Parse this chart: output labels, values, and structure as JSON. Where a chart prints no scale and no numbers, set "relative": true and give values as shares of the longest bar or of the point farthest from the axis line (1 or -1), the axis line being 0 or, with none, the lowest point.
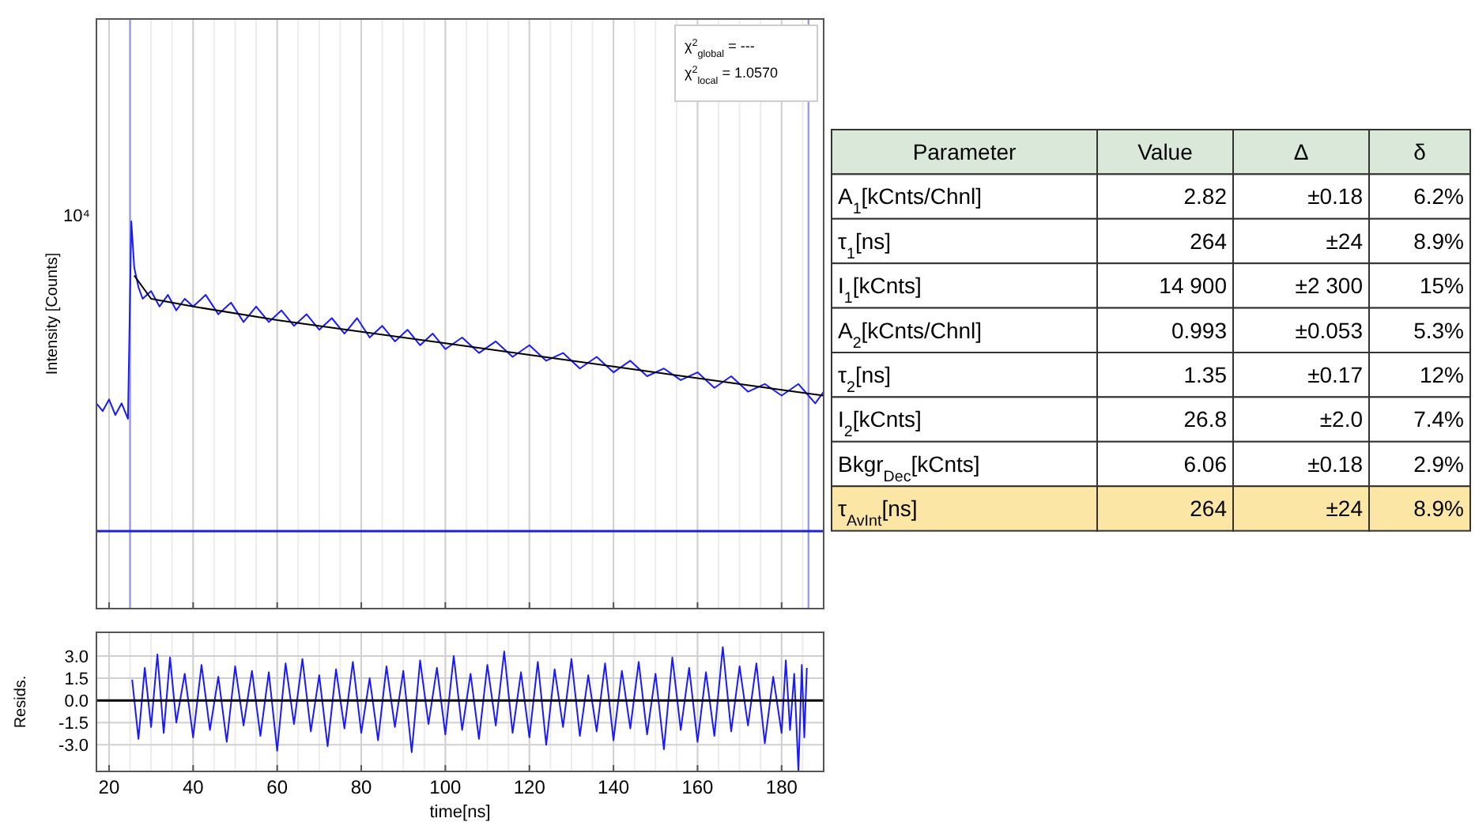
{
  "chart_data": [
    {
      "type": "line",
      "relative": true,
      "ylabel": "Intensity [Counts]",
      "xlim": [
        17,
        190
      ],
      "xticks": [
        20,
        40,
        60,
        80,
        100,
        120,
        140,
        160,
        180
      ],
      "grid": "x",
      "tick_labels": false,
      "series": [
        {
          "color": "#1a1aff",
          "x": [
            17,
            18.5,
            20,
            21.5,
            23,
            24.5,
            25.3,
            26,
            27,
            28,
            30,
            32,
            34,
            36,
            38,
            40,
            43,
            46,
            49,
            52,
            55,
            58,
            61,
            64,
            67,
            70,
            73,
            76,
            79,
            82,
            85,
            88,
            91,
            94,
            97,
            100,
            104,
            108,
            112,
            116,
            120,
            124,
            128,
            132,
            136,
            140,
            144,
            148,
            152,
            156,
            160,
            164,
            168,
            172,
            176,
            180,
            184,
            188,
            190
          ],
          "values": [
            0.53,
            0.51,
            0.54,
            0.5,
            0.53,
            0.49,
            1.0,
            0.88,
            0.83,
            0.8,
            0.82,
            0.78,
            0.81,
            0.77,
            0.8,
            0.78,
            0.81,
            0.76,
            0.79,
            0.74,
            0.78,
            0.74,
            0.77,
            0.73,
            0.76,
            0.72,
            0.75,
            0.71,
            0.75,
            0.7,
            0.73,
            0.69,
            0.72,
            0.68,
            0.71,
            0.67,
            0.7,
            0.66,
            0.69,
            0.65,
            0.68,
            0.64,
            0.66,
            0.62,
            0.65,
            0.61,
            0.64,
            0.6,
            0.62,
            0.59,
            0.61,
            0.57,
            0.6,
            0.56,
            0.58,
            0.55,
            0.58,
            0.53,
            0.56
          ]
        },
        {
          "color": "#000000",
          "x": [
            26,
            30,
            40,
            60,
            80,
            100,
            120,
            140,
            160,
            180,
            190
          ],
          "values": [
            0.86,
            0.8,
            0.78,
            0.745,
            0.715,
            0.685,
            0.655,
            0.625,
            0.595,
            0.565,
            0.55
          ]
        }
      ],
      "ref_lines": [
        {
          "axis": "x",
          "value": 25,
          "color": "#9999ee"
        },
        {
          "axis": "x",
          "value": 186.4,
          "color": "#9999ee"
        },
        {
          "axis": "y",
          "value": 0.2,
          "color": "#2222cc"
        }
      ],
      "annotations": [
        "10⁴",
        "χ$^{2}$$_{global}$ = ---",
        "χ$^{2}$$_{local}$ = 1.0570"
      ]
    },
    {
      "type": "line",
      "xlabel": "time[ns]",
      "ylabel": "Resids.",
      "xlim": [
        17,
        190
      ],
      "xticks": [
        20,
        40,
        60,
        80,
        100,
        120,
        140,
        160,
        180
      ],
      "ylim": [
        -4.8,
        4.6
      ],
      "yticks": [
        {
          "value": -3,
          "label": "-3.0"
        },
        {
          "value": -1.5,
          "label": "-1.5"
        },
        {
          "value": 0,
          "label": "0.0"
        },
        {
          "value": 1.5,
          "label": "1.5"
        },
        {
          "value": 3,
          "label": "3.0"
        }
      ],
      "grid": true,
      "series": [
        {
          "color": "#1a1aff",
          "x": [
            25.5,
            27,
            28.5,
            30,
            31.5,
            33,
            34.5,
            36,
            38,
            40,
            42,
            44,
            46,
            48,
            50,
            52,
            54,
            56,
            58,
            60,
            62,
            64,
            66,
            68,
            70,
            72,
            74,
            76,
            78,
            80,
            82,
            84,
            86,
            88,
            90,
            92,
            94,
            96,
            98,
            100,
            102,
            104,
            106,
            108,
            110,
            112,
            114,
            116,
            118,
            120,
            122,
            124,
            126,
            128,
            130,
            132,
            134,
            136,
            138,
            140,
            142,
            144,
            146,
            148,
            150,
            152,
            154,
            156,
            158,
            160,
            162,
            164,
            166,
            168,
            170,
            172,
            174,
            176,
            178,
            180,
            181,
            182,
            183,
            184,
            184.8,
            185.4,
            186
          ],
          "values": [
            1.4,
            -2.6,
            2.2,
            -1.8,
            3.1,
            -2.2,
            2.9,
            -1.5,
            1.8,
            -2.5,
            2.4,
            -2.0,
            1.6,
            -2.8,
            2.3,
            -1.7,
            2.0,
            -2.4,
            1.9,
            -3.4,
            2.5,
            -1.6,
            2.8,
            -2.1,
            1.7,
            -3.1,
            2.1,
            -1.9,
            2.6,
            -2.2,
            1.5,
            -2.7,
            2.3,
            -1.8,
            2.0,
            -3.5,
            2.7,
            -1.6,
            2.2,
            -2.3,
            3.0,
            -2.0,
            1.8,
            -2.6,
            2.4,
            -1.7,
            3.3,
            -2.2,
            1.9,
            -2.5,
            2.6,
            -3.0,
            2.1,
            -1.8,
            2.8,
            -2.4,
            1.7,
            -2.1,
            2.5,
            -2.7,
            2.0,
            -1.9,
            2.6,
            -2.3,
            1.8,
            -3.3,
            2.9,
            -2.0,
            2.2,
            -2.8,
            1.9,
            -2.4,
            3.6,
            -2.1,
            2.3,
            -1.7,
            2.5,
            -2.9,
            1.6,
            -2.2,
            2.7,
            -2.0,
            1.8,
            -4.8,
            2.4,
            -2.5,
            2.2
          ]
        }
      ],
      "ref_lines": [
        {
          "axis": "y",
          "value": 0,
          "color": "#000000"
        }
      ]
    },
    {
      "type": "other",
      "annotations": [
        "Parameter",
        "Value",
        "Δ",
        "δ",
        "A$_{1}$[kCnts/Chnl]",
        "2.82",
        "±0.18",
        "6.2%",
        "τ$_{1}$[ns]",
        "264",
        "±24",
        "8.9%",
        "I$_{1}$[kCnts]",
        "14 900",
        "±2 300",
        "15%",
        "A$_{2}$[kCnts/Chnl]",
        "0.993",
        "±0.053",
        "5.3%",
        "τ$_{2}$[ns]",
        "1.35",
        "±0.17",
        "12%",
        "I$_{2}$[kCnts]",
        "26.8",
        "±2.0",
        "7.4%",
        "Bkgr$_{Dec}$[kCnts]",
        "6.06",
        "±0.18",
        "2.9%",
        "τ$_{AvInt}$[ns]",
        "264",
        "±24",
        "8.9%"
      ]
    }
  ]
}
